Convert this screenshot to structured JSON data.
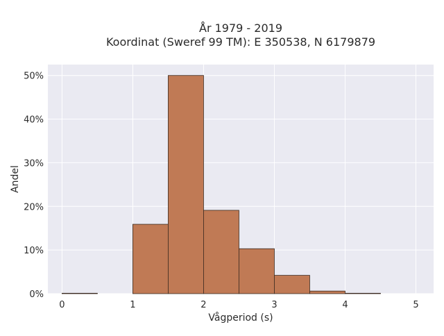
{
  "chart_data": {
    "type": "bar",
    "title_line1": "År 1979 - 2019",
    "title_line2": "Koordinat (Sweref 99 TM): E 350538, N 6179879",
    "xlabel": "Vågperiod (s)",
    "ylabel": "Andel",
    "xlim": [
      -0.2,
      5.25
    ],
    "ylim": [
      0,
      52.5
    ],
    "x_ticks": [
      0,
      1,
      2,
      3,
      4,
      5
    ],
    "x_tick_labels": [
      "0",
      "1",
      "2",
      "3",
      "4",
      "5"
    ],
    "y_ticks": [
      0,
      10,
      20,
      30,
      40,
      50
    ],
    "y_tick_labels": [
      "0%",
      "10%",
      "20%",
      "30%",
      "40%",
      "50%"
    ],
    "grid": true,
    "bar_color": "#c07a55",
    "bar_edge_color": "#3a2a20",
    "background_color": "#eaeaf2",
    "bins": [
      {
        "x0": 0.0,
        "x1": 0.5,
        "value": 0.1
      },
      {
        "x0": 0.5,
        "x1": 1.0,
        "value": 0.0
      },
      {
        "x0": 1.0,
        "x1": 1.5,
        "value": 15.9
      },
      {
        "x0": 1.5,
        "x1": 2.0,
        "value": 50.0
      },
      {
        "x0": 2.0,
        "x1": 2.5,
        "value": 19.1
      },
      {
        "x0": 2.5,
        "x1": 3.0,
        "value": 10.3
      },
      {
        "x0": 3.0,
        "x1": 3.5,
        "value": 4.2
      },
      {
        "x0": 3.5,
        "x1": 4.0,
        "value": 0.6
      },
      {
        "x0": 4.0,
        "x1": 4.5,
        "value": 0.1
      },
      {
        "x0": 4.5,
        "x1": 5.0,
        "value": 0.0
      }
    ]
  }
}
